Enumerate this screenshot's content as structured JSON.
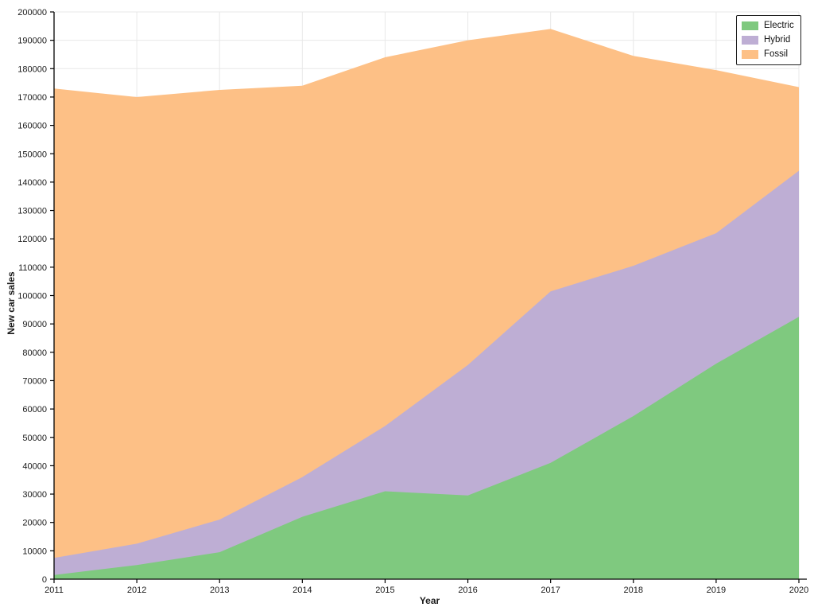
{
  "chart_data": {
    "type": "area",
    "stacked": true,
    "title": "",
    "xlabel": "Year",
    "ylabel": "New car sales",
    "x": [
      2011,
      2012,
      2013,
      2014,
      2015,
      2016,
      2017,
      2018,
      2019,
      2020
    ],
    "series": [
      {
        "name": "Electric",
        "color": "#7fc97f",
        "values": [
          1500,
          5000,
          9500,
          22000,
          31000,
          29500,
          41000,
          57500,
          76000,
          92500
        ]
      },
      {
        "name": "Hybrid",
        "color": "#beaed4",
        "values": [
          6000,
          7500,
          11500,
          14000,
          23000,
          46000,
          60500,
          53000,
          46000,
          51500
        ]
      },
      {
        "name": "Fossil",
        "color": "#fdc086",
        "values": [
          165500,
          157500,
          151500,
          138000,
          130000,
          114500,
          92500,
          74000,
          57500,
          29500
        ]
      }
    ],
    "stacked_totals": [
      173000,
      170000,
      172500,
      174000,
      184000,
      190000,
      194000,
      184500,
      179500,
      173500
    ],
    "ylim": [
      0,
      200000
    ],
    "ytick_step": 10000,
    "grid": true,
    "legend_position": "upper right",
    "axes": {
      "x_tick_labels": [
        "2011",
        "2012",
        "2013",
        "2014",
        "2015",
        "2016",
        "2017",
        "2018",
        "2019",
        "2020"
      ],
      "y_tick_labels": [
        "0",
        "10000",
        "20000",
        "30000",
        "40000",
        "50000",
        "60000",
        "70000",
        "80000",
        "90000",
        "100000",
        "110000",
        "120000",
        "130000",
        "140000",
        "150000",
        "160000",
        "170000",
        "180000",
        "190000",
        "200000"
      ]
    }
  }
}
